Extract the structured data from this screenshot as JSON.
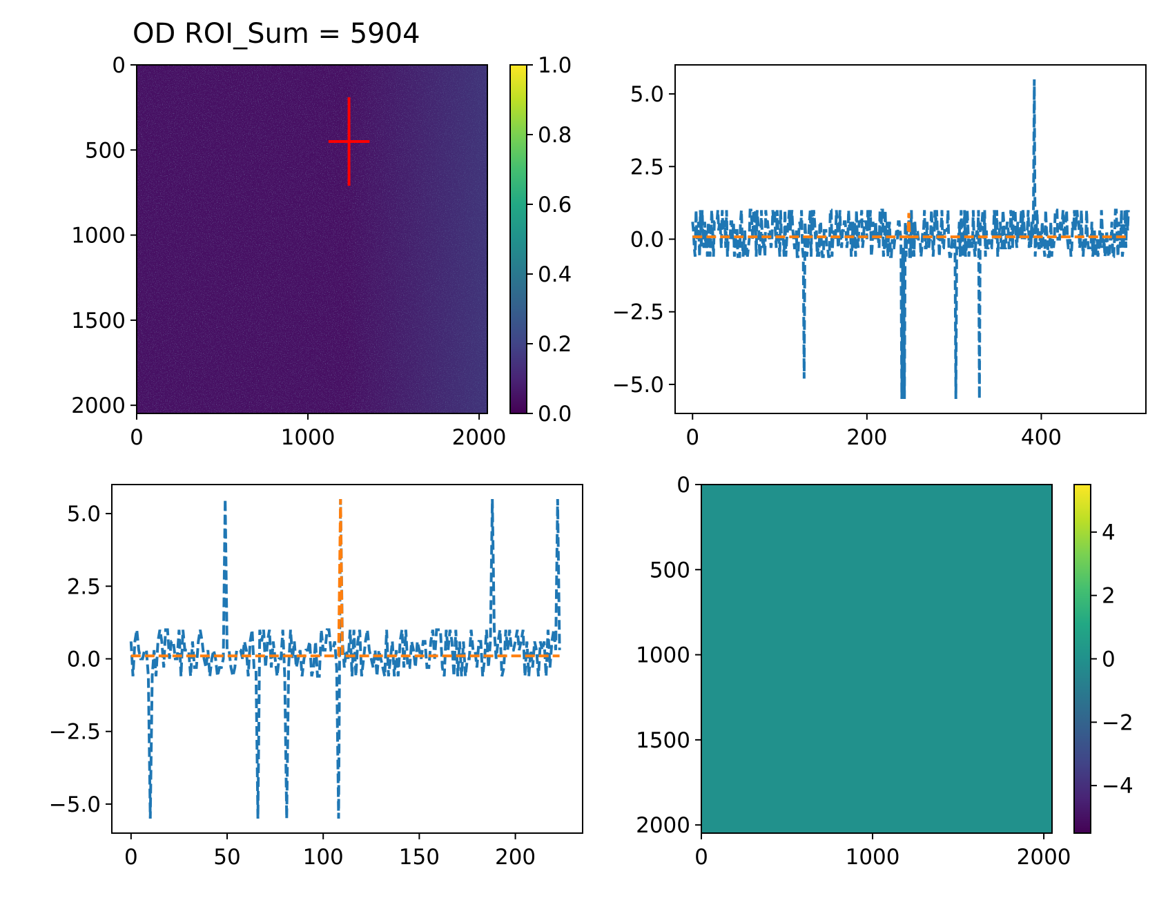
{
  "chart_data": [
    {
      "id": "od-image",
      "type": "heatmap",
      "title": "OD ROI_Sum = 5904",
      "xlim": [
        0,
        2048
      ],
      "ylim": [
        2048,
        0
      ],
      "xticks": [
        0,
        1000,
        2000
      ],
      "yticks": [
        0,
        500,
        1000,
        1500,
        2000
      ],
      "colormap": "viridis",
      "background_level": 0.12,
      "colorbar": {
        "range": [
          0,
          1
        ],
        "ticks": [
          "0.0",
          "0.2",
          "0.4",
          "0.6",
          "0.8",
          "1.0"
        ]
      },
      "marker": {
        "type": "cross",
        "color": "#ff0000",
        "x": 1240,
        "y": 450,
        "half_width": 120,
        "half_height": 260
      }
    },
    {
      "id": "horizontal-profile",
      "type": "line",
      "xlim": [
        -20,
        520
      ],
      "ylim": [
        -6.0,
        6.0
      ],
      "xticks": [
        0,
        200,
        400
      ],
      "yticks": [
        5.0,
        2.5,
        0.0,
        -2.5,
        -5.0
      ],
      "ytick_labels": [
        "5.0",
        "2.5",
        "0.0",
        "−2.5",
        "−5.0"
      ],
      "x_max": 500,
      "spikes": [
        [
          128,
          -4.8
        ],
        [
          240,
          -5.5
        ],
        [
          243,
          -5.5
        ],
        [
          302,
          -5.5
        ],
        [
          329,
          -5.5
        ],
        [
          392,
          5.5
        ]
      ],
      "series": [
        {
          "style": "dashed",
          "color": "#1f77b4"
        },
        {
          "style": "dashed",
          "color": "#ff7f0e",
          "baseline": 0.08,
          "bumps": [
            [
              248,
              0.9
            ]
          ]
        }
      ]
    },
    {
      "id": "vertical-profile",
      "type": "line",
      "xlim": [
        -10,
        235
      ],
      "ylim": [
        -6.0,
        6.0
      ],
      "xticks": [
        0,
        50,
        100,
        150,
        200
      ],
      "yticks": [
        5.0,
        2.5,
        0.0,
        -2.5,
        -5.0
      ],
      "ytick_labels": [
        "5.0",
        "2.5",
        "0.0",
        "−2.5",
        "−5.0"
      ],
      "x_max": 223,
      "spikes": [
        [
          10,
          -5.5
        ],
        [
          49,
          5.5
        ],
        [
          66,
          -5.5
        ],
        [
          81,
          -5.5
        ],
        [
          108,
          -5.5
        ],
        [
          109,
          5.5
        ],
        [
          188,
          5.5
        ],
        [
          222,
          5.5
        ]
      ],
      "series": [
        {
          "style": "dashed",
          "color": "#1f77b4"
        },
        {
          "style": "dashed",
          "color": "#ff7f0e",
          "baseline": 0.1,
          "bumps": [
            [
              109,
              5.5
            ]
          ]
        }
      ]
    },
    {
      "id": "diff-image",
      "type": "heatmap",
      "xlim": [
        0,
        2048
      ],
      "ylim": [
        2048,
        0
      ],
      "xticks": [
        0,
        1000,
        2000
      ],
      "yticks": [
        0,
        500,
        1000,
        1500,
        2000
      ],
      "colormap": "viridis",
      "fill_color": "#21918c",
      "colorbar": {
        "range": [
          -5.5,
          5.5
        ],
        "ticks": [
          "−4",
          "−2",
          "0",
          "2",
          "4"
        ],
        "tick_values": [
          -4,
          -2,
          0,
          2,
          4
        ]
      }
    }
  ]
}
